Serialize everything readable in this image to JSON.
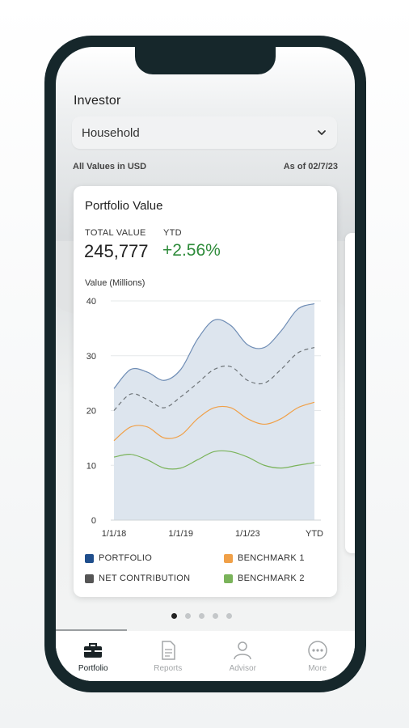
{
  "header": {
    "investor_label": "Investor",
    "household_select": {
      "selected": "Household"
    },
    "values_currency": "All Values in USD",
    "as_of": "As of 02/7/23"
  },
  "portfolio_card": {
    "title": "Portfolio Value",
    "total_value_label": "TOTAL VALUE",
    "total_value": "245,777",
    "ytd_label": "YTD",
    "ytd_value": "+2.56%",
    "ytd_color": "#2e8b3a"
  },
  "chart_data": {
    "type": "area",
    "title": "Portfolio Value",
    "ylabel": "Value (Millions)",
    "xlabel": "",
    "ylim": [
      0,
      40
    ],
    "yticks": [
      0,
      10,
      20,
      30,
      40
    ],
    "x_tick_labels": [
      "1/1/18",
      "1/1/19",
      "1/1/23",
      "YTD"
    ],
    "x": [
      0,
      0.5,
      1,
      1.5,
      2,
      2.5,
      3,
      3.5,
      4,
      4.5,
      5,
      5.5,
      6
    ],
    "series": [
      {
        "name": "PORTFOLIO",
        "color": "#1f4e8c",
        "style": "area",
        "values": [
          24,
          27.5,
          27,
          25.5,
          27.5,
          33,
          36.5,
          35.5,
          32,
          31.5,
          34.5,
          38.5,
          39.5
        ]
      },
      {
        "name": "NET CONTRIBUTION",
        "color": "#555555",
        "style": "dashed",
        "values": [
          20,
          23,
          22,
          20.5,
          22.5,
          25,
          27.5,
          28,
          25.5,
          25,
          27.5,
          30.5,
          31.5
        ]
      },
      {
        "name": "BENCHMARK 1",
        "color": "#f0a048",
        "style": "line",
        "values": [
          14.5,
          17,
          17,
          15,
          15.5,
          18.5,
          20.5,
          20.5,
          18.5,
          17.5,
          18.5,
          20.5,
          21.5
        ]
      },
      {
        "name": "BENCHMARK 2",
        "color": "#7ab35a",
        "style": "line",
        "values": [
          11.5,
          12,
          11,
          9.5,
          9.5,
          11,
          12.5,
          12.5,
          11.5,
          10,
          9.5,
          10,
          10.5
        ]
      }
    ],
    "grid": true,
    "legend": "bottom"
  },
  "legend": [
    {
      "label": "PORTFOLIO",
      "color": "#1f4e8c"
    },
    {
      "label": "BENCHMARK 1",
      "color": "#f0a048"
    },
    {
      "label": "NET CONTRIBUTION",
      "color": "#555555"
    },
    {
      "label": "BENCHMARK 2",
      "color": "#7ab35a"
    }
  ],
  "pager": {
    "count": 5,
    "active": 1
  },
  "tabs": [
    {
      "label": "Portfolio",
      "icon": "briefcase-icon",
      "active": true
    },
    {
      "label": "Reports",
      "icon": "document-icon",
      "active": false
    },
    {
      "label": "Advisor",
      "icon": "person-icon",
      "active": false
    },
    {
      "label": "More",
      "icon": "more-icon",
      "active": false
    }
  ]
}
